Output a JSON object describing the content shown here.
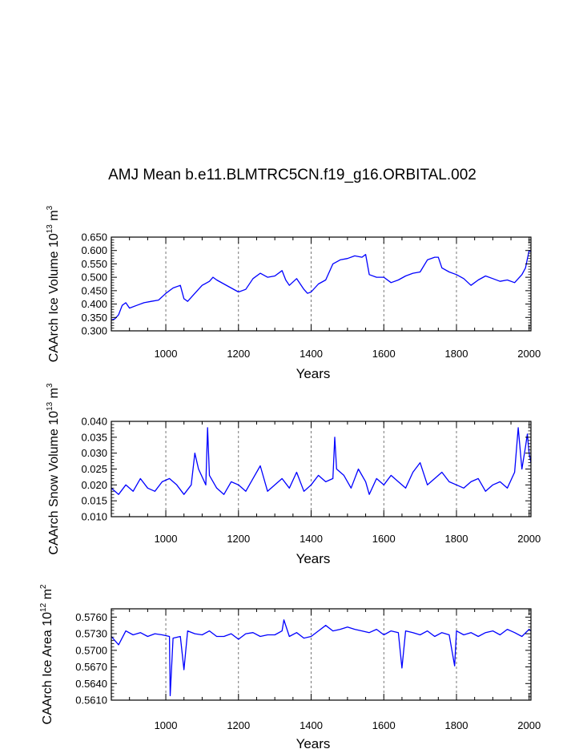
{
  "figure": {
    "title": "AMJ Mean b.e11.BLMTRC5CN.f19_g16.ORBITAL.002"
  },
  "chart_data": [
    {
      "type": "line",
      "title": "",
      "xlabel": "Years",
      "ylabel_main": "CAArch Ice Volume 10",
      "ylabel_exp": "13",
      "ylabel_unit": " m",
      "ylabel_unit_exp": "3",
      "xlim": [
        850,
        2005
      ],
      "ylim": [
        0.3,
        0.65
      ],
      "xticks": [
        1000,
        1200,
        1400,
        1600,
        1800,
        2000
      ],
      "xtick_labels": [
        "1000",
        "1200",
        "1400",
        "1600",
        "1800",
        "2000"
      ],
      "yticks": [
        0.3,
        0.35,
        0.4,
        0.45,
        0.5,
        0.55,
        0.6,
        0.65
      ],
      "ytick_labels": [
        "0.300",
        "0.350",
        "0.400",
        "0.450",
        "0.500",
        "0.550",
        "0.600",
        "0.650"
      ],
      "grid": "vertical-dashed",
      "color": "#0000ff",
      "series": [
        {
          "name": "CAArch Ice Volume",
          "x": [
            850,
            860,
            870,
            880,
            890,
            900,
            920,
            940,
            960,
            980,
            1000,
            1020,
            1040,
            1050,
            1060,
            1080,
            1100,
            1120,
            1130,
            1140,
            1160,
            1180,
            1200,
            1220,
            1240,
            1260,
            1280,
            1300,
            1320,
            1330,
            1340,
            1360,
            1380,
            1390,
            1400,
            1420,
            1440,
            1460,
            1480,
            1500,
            1520,
            1540,
            1550,
            1560,
            1580,
            1600,
            1620,
            1640,
            1660,
            1680,
            1700,
            1720,
            1740,
            1750,
            1760,
            1780,
            1800,
            1820,
            1840,
            1860,
            1880,
            1900,
            1920,
            1940,
            1960,
            1980,
            1990,
            2000,
            2005
          ],
          "y": [
            0.34,
            0.345,
            0.36,
            0.395,
            0.405,
            0.385,
            0.395,
            0.405,
            0.41,
            0.415,
            0.44,
            0.46,
            0.47,
            0.42,
            0.41,
            0.44,
            0.47,
            0.485,
            0.5,
            0.49,
            0.475,
            0.46,
            0.445,
            0.455,
            0.495,
            0.515,
            0.5,
            0.505,
            0.525,
            0.49,
            0.47,
            0.495,
            0.455,
            0.44,
            0.445,
            0.475,
            0.49,
            0.55,
            0.565,
            0.57,
            0.58,
            0.575,
            0.585,
            0.51,
            0.5,
            0.5,
            0.48,
            0.49,
            0.505,
            0.515,
            0.52,
            0.565,
            0.575,
            0.575,
            0.535,
            0.52,
            0.51,
            0.495,
            0.47,
            0.49,
            0.505,
            0.495,
            0.485,
            0.49,
            0.48,
            0.51,
            0.535,
            0.6,
            0.595
          ]
        }
      ]
    },
    {
      "type": "line",
      "title": "",
      "xlabel": "Years",
      "ylabel_main": "CAArch Snow Volume 10",
      "ylabel_exp": "13",
      "ylabel_unit": " m",
      "ylabel_unit_exp": "3",
      "xlim": [
        850,
        2005
      ],
      "ylim": [
        0.01,
        0.04
      ],
      "xticks": [
        1000,
        1200,
        1400,
        1600,
        1800,
        2000
      ],
      "xtick_labels": [
        "1000",
        "1200",
        "1400",
        "1600",
        "1800",
        "2000"
      ],
      "yticks": [
        0.01,
        0.015,
        0.02,
        0.025,
        0.03,
        0.035,
        0.04
      ],
      "ytick_labels": [
        "0.010",
        "0.015",
        "0.020",
        "0.025",
        "0.030",
        "0.035",
        "0.040"
      ],
      "grid": "vertical-dashed",
      "color": "#0000ff",
      "series": [
        {
          "name": "CAArch Snow Volume",
          "x": [
            850,
            870,
            890,
            910,
            930,
            950,
            970,
            990,
            1010,
            1030,
            1050,
            1070,
            1080,
            1090,
            1110,
            1115,
            1120,
            1140,
            1160,
            1180,
            1200,
            1220,
            1240,
            1260,
            1280,
            1300,
            1320,
            1340,
            1360,
            1380,
            1400,
            1420,
            1440,
            1460,
            1465,
            1470,
            1490,
            1510,
            1530,
            1550,
            1560,
            1580,
            1600,
            1620,
            1640,
            1660,
            1680,
            1700,
            1720,
            1740,
            1760,
            1780,
            1800,
            1820,
            1840,
            1860,
            1880,
            1900,
            1920,
            1940,
            1960,
            1970,
            1980,
            1990,
            1995,
            2000,
            2005
          ],
          "y": [
            0.019,
            0.017,
            0.02,
            0.018,
            0.022,
            0.019,
            0.018,
            0.021,
            0.022,
            0.02,
            0.017,
            0.02,
            0.03,
            0.025,
            0.02,
            0.038,
            0.023,
            0.019,
            0.017,
            0.021,
            0.02,
            0.018,
            0.022,
            0.026,
            0.018,
            0.02,
            0.022,
            0.019,
            0.024,
            0.018,
            0.02,
            0.023,
            0.021,
            0.022,
            0.035,
            0.025,
            0.023,
            0.019,
            0.025,
            0.021,
            0.017,
            0.022,
            0.02,
            0.023,
            0.021,
            0.019,
            0.024,
            0.027,
            0.02,
            0.022,
            0.024,
            0.021,
            0.02,
            0.019,
            0.021,
            0.022,
            0.018,
            0.02,
            0.021,
            0.019,
            0.024,
            0.038,
            0.025,
            0.032,
            0.036,
            0.03,
            0.027
          ]
        }
      ]
    },
    {
      "type": "line",
      "title": "",
      "xlabel": "Years",
      "ylabel_main": "CAArch Ice Area 10",
      "ylabel_exp": "12",
      "ylabel_unit": " m",
      "ylabel_unit_exp": "2",
      "xlim": [
        850,
        2005
      ],
      "ylim": [
        0.561,
        0.5775
      ],
      "xticks": [
        1000,
        1200,
        1400,
        1600,
        1800,
        2000
      ],
      "xtick_labels": [
        "1000",
        "1200",
        "1400",
        "1600",
        "1800",
        "2000"
      ],
      "yticks": [
        0.561,
        0.564,
        0.567,
        0.57,
        0.573,
        0.576
      ],
      "ytick_labels": [
        "0.5610",
        "0.5640",
        "0.5670",
        "0.5700",
        "0.5730",
        "0.5760"
      ],
      "grid": "vertical-dashed",
      "color": "#0000ff",
      "series": [
        {
          "name": "CAArch Ice Area",
          "x": [
            850,
            870,
            890,
            910,
            930,
            950,
            970,
            990,
            1010,
            1012,
            1020,
            1040,
            1050,
            1060,
            1080,
            1100,
            1120,
            1140,
            1160,
            1180,
            1200,
            1220,
            1240,
            1260,
            1280,
            1300,
            1320,
            1325,
            1340,
            1360,
            1380,
            1400,
            1420,
            1440,
            1460,
            1480,
            1500,
            1520,
            1540,
            1560,
            1580,
            1600,
            1620,
            1640,
            1650,
            1660,
            1680,
            1700,
            1720,
            1740,
            1760,
            1780,
            1795,
            1800,
            1820,
            1840,
            1860,
            1880,
            1900,
            1920,
            1940,
            1960,
            1980,
            2000,
            2005
          ],
          "y": [
            0.5725,
            0.571,
            0.5735,
            0.5728,
            0.5732,
            0.5725,
            0.573,
            0.5728,
            0.5725,
            0.5618,
            0.5722,
            0.5725,
            0.5665,
            0.5735,
            0.573,
            0.5728,
            0.5735,
            0.5725,
            0.5725,
            0.573,
            0.572,
            0.573,
            0.5732,
            0.5725,
            0.5728,
            0.5728,
            0.5735,
            0.5755,
            0.5725,
            0.5732,
            0.5722,
            0.5725,
            0.5735,
            0.5745,
            0.5735,
            0.5738,
            0.5742,
            0.5738,
            0.5735,
            0.5732,
            0.5738,
            0.5728,
            0.5735,
            0.5732,
            0.5668,
            0.5735,
            0.5732,
            0.5728,
            0.5735,
            0.5725,
            0.5732,
            0.5728,
            0.5672,
            0.5735,
            0.5728,
            0.5732,
            0.5725,
            0.5732,
            0.5735,
            0.5728,
            0.5738,
            0.5732,
            0.5725,
            0.5738,
            0.5735
          ]
        }
      ]
    }
  ]
}
